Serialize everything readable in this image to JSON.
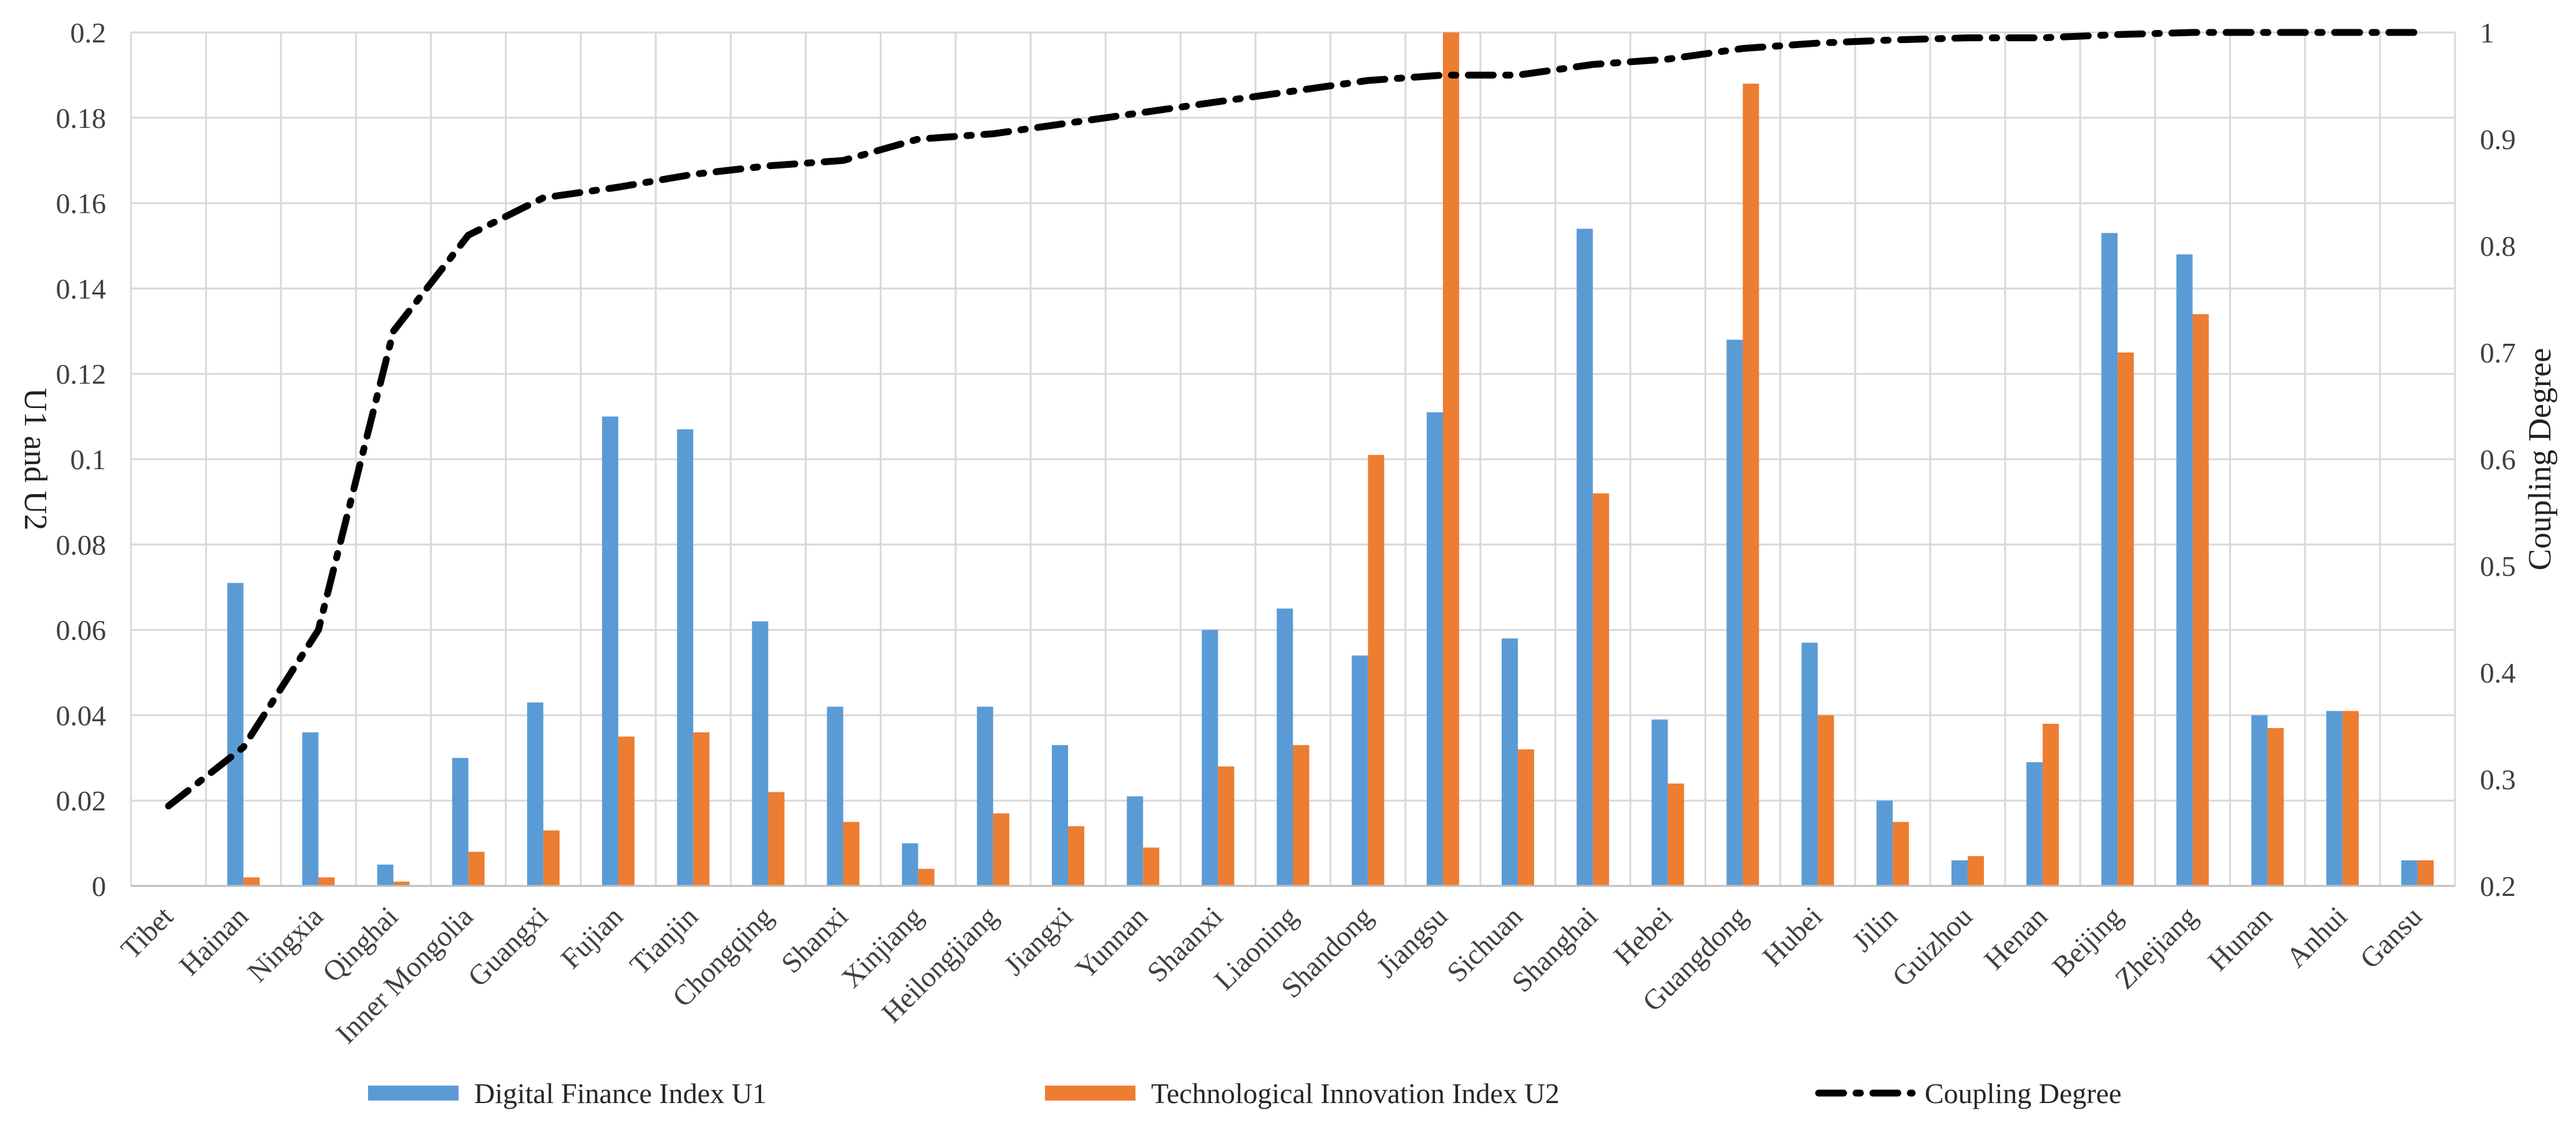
{
  "chart_data": {
    "type": "bar",
    "categories": [
      "Tibet",
      "Hainan",
      "Ningxia",
      "Qinghai",
      "Inner Mongolia",
      "Guangxi",
      "Fujian",
      "Tianjin",
      "Chongqing",
      "Shanxi",
      "Xinjiang",
      "Heilongjiang",
      "Jiangxi",
      "Yunnan",
      "Shaanxi",
      "Liaoning",
      "Shandong",
      "Jiangsu",
      "Sichuan",
      "Shanghai",
      "Hebei",
      "Guangdong",
      "Hubei",
      "Jilin",
      "Guizhou",
      "Henan",
      "Beijing",
      "Zhejiang",
      "Hunan",
      "Anhui",
      "Gansu"
    ],
    "series": [
      {
        "name": "Digital Finance Index U1",
        "type": "bar",
        "axis": "left",
        "color": "#5B9BD5",
        "values": [
          0,
          0.071,
          0.036,
          0.005,
          0.03,
          0.043,
          0.11,
          0.107,
          0.062,
          0.042,
          0.01,
          0.042,
          0.033,
          0.021,
          0.06,
          0.065,
          0.054,
          0.111,
          0.058,
          0.154,
          0.039,
          0.128,
          0.057,
          0.02,
          0.006,
          0.029,
          0.153,
          0.148,
          0.04,
          0.041,
          0.006
        ]
      },
      {
        "name": "Technological Innovation Index U2",
        "type": "bar",
        "axis": "left",
        "color": "#ED7D31",
        "values": [
          0,
          0.002,
          0.002,
          0.001,
          0.008,
          0.013,
          0.035,
          0.036,
          0.022,
          0.015,
          0.004,
          0.017,
          0.014,
          0.009,
          0.028,
          0.033,
          0.101,
          0.2,
          0.032,
          0.092,
          0.024,
          0.188,
          0.04,
          0.015,
          0.007,
          0.038,
          0.125,
          0.134,
          0.037,
          0.041,
          0.006
        ]
      },
      {
        "name": "Coupling Degree",
        "type": "line",
        "style": "dash-dot",
        "axis": "right",
        "color": "#000000",
        "values": [
          0.275,
          0.33,
          0.44,
          0.72,
          0.81,
          0.845,
          0.855,
          0.867,
          0.875,
          0.88,
          0.9,
          0.905,
          0.915,
          0.925,
          0.935,
          0.945,
          0.955,
          0.96,
          0.96,
          0.97,
          0.975,
          0.985,
          0.99,
          0.993,
          0.995,
          0.995,
          0.998,
          1.0,
          1.0,
          1.0,
          1.0
        ]
      }
    ],
    "ylabel": "U1 and U2",
    "y2label": "Coupling Degree",
    "xlabel": "",
    "title": "",
    "ylim": [
      0,
      0.2
    ],
    "y2lim": [
      0.2,
      1
    ],
    "yticks": [
      "0",
      "0.02",
      "0.04",
      "0.06",
      "0.08",
      "0.1",
      "0.12",
      "0.14",
      "0.16",
      "0.18",
      "0.2"
    ],
    "y2ticks": [
      "0.2",
      "0.3",
      "0.4",
      "0.5",
      "0.6",
      "0.7",
      "0.8",
      "0.9",
      "1"
    ],
    "grid": true,
    "legend_position": "bottom",
    "gridline_color": "#d9d9d9",
    "axis_line_color": "#bfbfbf",
    "text_color": "#404040"
  }
}
